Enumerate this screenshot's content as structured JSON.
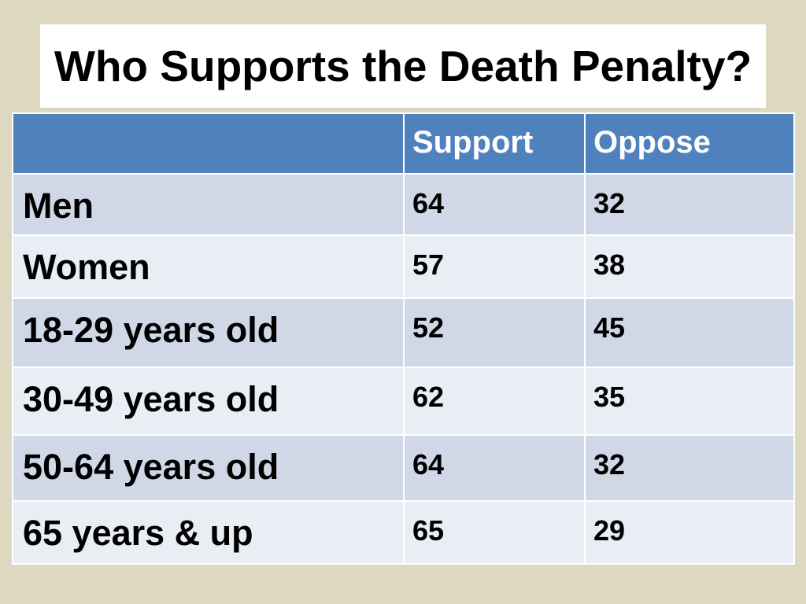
{
  "title": "Who Supports the Death Penalty?",
  "table": {
    "headers": [
      "",
      "Support",
      "Oppose"
    ],
    "rows": [
      {
        "label": "Men",
        "support": "64",
        "oppose": "32"
      },
      {
        "label": "Women",
        "support": "57",
        "oppose": "38"
      },
      {
        "label": "18-29 years old",
        "support": "52",
        "oppose": "45"
      },
      {
        "label": "30-49 years old",
        "support": "62",
        "oppose": "35"
      },
      {
        "label": "50-64 years old",
        "support": "64",
        "oppose": "32"
      },
      {
        "label": "65 years & up",
        "support": "65",
        "oppose": "29"
      }
    ]
  },
  "colors": {
    "background": "#dfd8c0",
    "header": "#4f81bd",
    "row_band_dark": "#d0d8e8",
    "row_band_light": "#e9edf4"
  }
}
